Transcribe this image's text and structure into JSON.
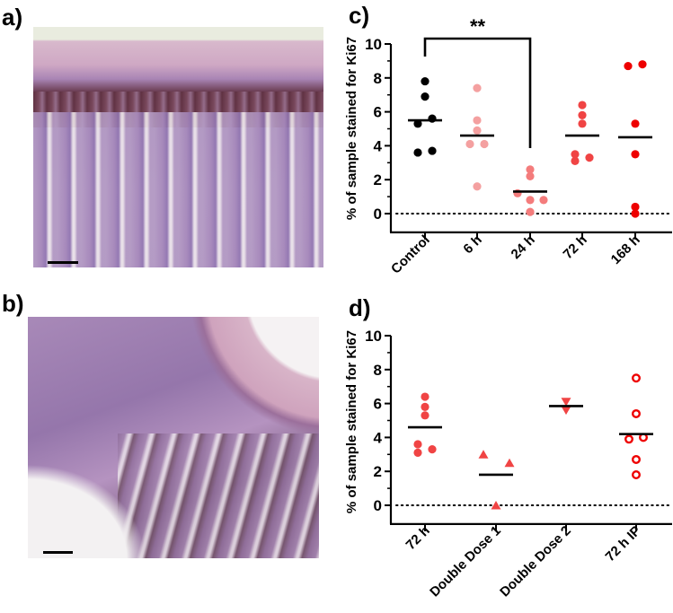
{
  "panels": {
    "a": {
      "label": "a)",
      "image": "histology-intestine-section-a",
      "scale_bar": true
    },
    "b": {
      "label": "b)",
      "image": "histology-intestine-section-b",
      "scale_bar": true
    },
    "c": {
      "label": "c)"
    },
    "d": {
      "label": "d)"
    }
  },
  "chart_data": [
    {
      "panel": "c",
      "type": "scatter",
      "title": "",
      "xlabel": "",
      "ylabel": "% of sample stained for Ki67",
      "ylim": [
        -1,
        10
      ],
      "yticks": [
        0,
        2,
        4,
        6,
        8,
        10
      ],
      "yticks_minor": [
        1,
        3,
        5,
        7,
        9
      ],
      "reference_line": {
        "y": 0,
        "style": "dotted"
      },
      "categories": [
        "Control",
        "6 h",
        "24 h",
        "72 h",
        "168 h"
      ],
      "series": [
        {
          "name": "Control",
          "color": "#000000",
          "marker": "circle-filled",
          "values": [
            7.8,
            6.9,
            5.6,
            5.3,
            3.7,
            3.6
          ],
          "mean": 5.5
        },
        {
          "name": "6 h",
          "color": "#f4a0a0",
          "marker": "circle-filled",
          "values": [
            7.4,
            5.5,
            4.9,
            4.1,
            4.1,
            1.6
          ],
          "mean": 4.6
        },
        {
          "name": "24 h",
          "color": "#f47c7c",
          "marker": "circle-filled",
          "values": [
            2.6,
            2.2,
            1.2,
            0.8,
            0.8,
            0.1
          ],
          "mean": 1.3
        },
        {
          "name": "72 h",
          "color": "#f04444",
          "marker": "circle-filled",
          "values": [
            6.4,
            5.8,
            5.3,
            3.5,
            3.3,
            3.1
          ],
          "mean": 4.6
        },
        {
          "name": "168 h",
          "color": "#ee0000",
          "marker": "circle-filled",
          "values": [
            8.8,
            8.7,
            5.3,
            3.5,
            0.4,
            0.0
          ],
          "mean": 4.5
        }
      ],
      "annotations": [
        {
          "type": "significance-bracket",
          "from": "Control",
          "to": "24 h",
          "label": "**"
        }
      ]
    },
    {
      "panel": "d",
      "type": "scatter",
      "title": "",
      "xlabel": "",
      "ylabel": "% of sample stained for Ki67",
      "ylim": [
        -1,
        10
      ],
      "yticks": [
        0,
        2,
        4,
        6,
        8,
        10
      ],
      "yticks_minor": [
        1,
        3,
        5,
        7,
        9
      ],
      "reference_line": {
        "y": 0,
        "style": "dotted"
      },
      "categories": [
        "72 h",
        "Double Dose 1",
        "Double Dose 2",
        "72 h IP"
      ],
      "series": [
        {
          "name": "72 h",
          "color": "#f04444",
          "marker": "circle-filled",
          "values": [
            6.4,
            5.8,
            5.3,
            3.6,
            3.3,
            3.1
          ],
          "mean": 4.6
        },
        {
          "name": "Double Dose 1",
          "color": "#f04444",
          "marker": "triangle-up",
          "values": [
            3.0,
            2.5,
            0.0
          ],
          "mean": 1.8
        },
        {
          "name": "Double Dose 2",
          "color": "#f04444",
          "marker": "triangle-down",
          "values": [
            6.1,
            5.6
          ],
          "mean": 5.85
        },
        {
          "name": "72 h IP",
          "color": "#ee0000",
          "marker": "circle-open",
          "values": [
            7.5,
            5.4,
            4.0,
            3.9,
            2.7,
            1.8
          ],
          "mean": 4.2
        }
      ]
    }
  ]
}
